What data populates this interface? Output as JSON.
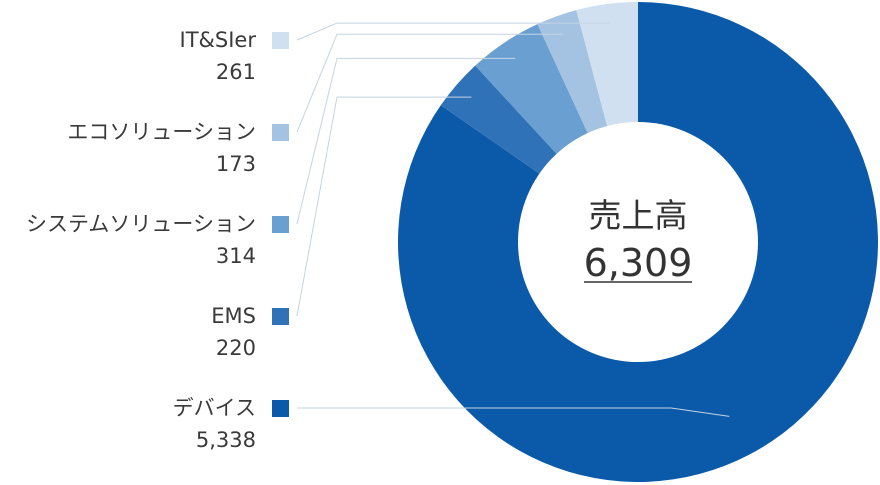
{
  "chart_data": {
    "type": "pie",
    "title": "売上高",
    "total": "6,309",
    "slices": [
      {
        "name": "デバイス",
        "value": 5338,
        "value_label": "5,338",
        "color": "#0b5aa9"
      },
      {
        "name": "EMS",
        "value": 220,
        "value_label": "220",
        "color": "#2f72b8"
      },
      {
        "name": "システムソリューション",
        "value": 314,
        "value_label": "314",
        "color": "#6a9fd1"
      },
      {
        "name": "エコソリューション",
        "value": 173,
        "value_label": "173",
        "color": "#a4c3e2"
      },
      {
        "name": "IT&SIer",
        "value": 261,
        "value_label": "261",
        "color": "#d0e0f1"
      }
    ],
    "legend_placement": "left",
    "hole_ratio": 0.5
  }
}
